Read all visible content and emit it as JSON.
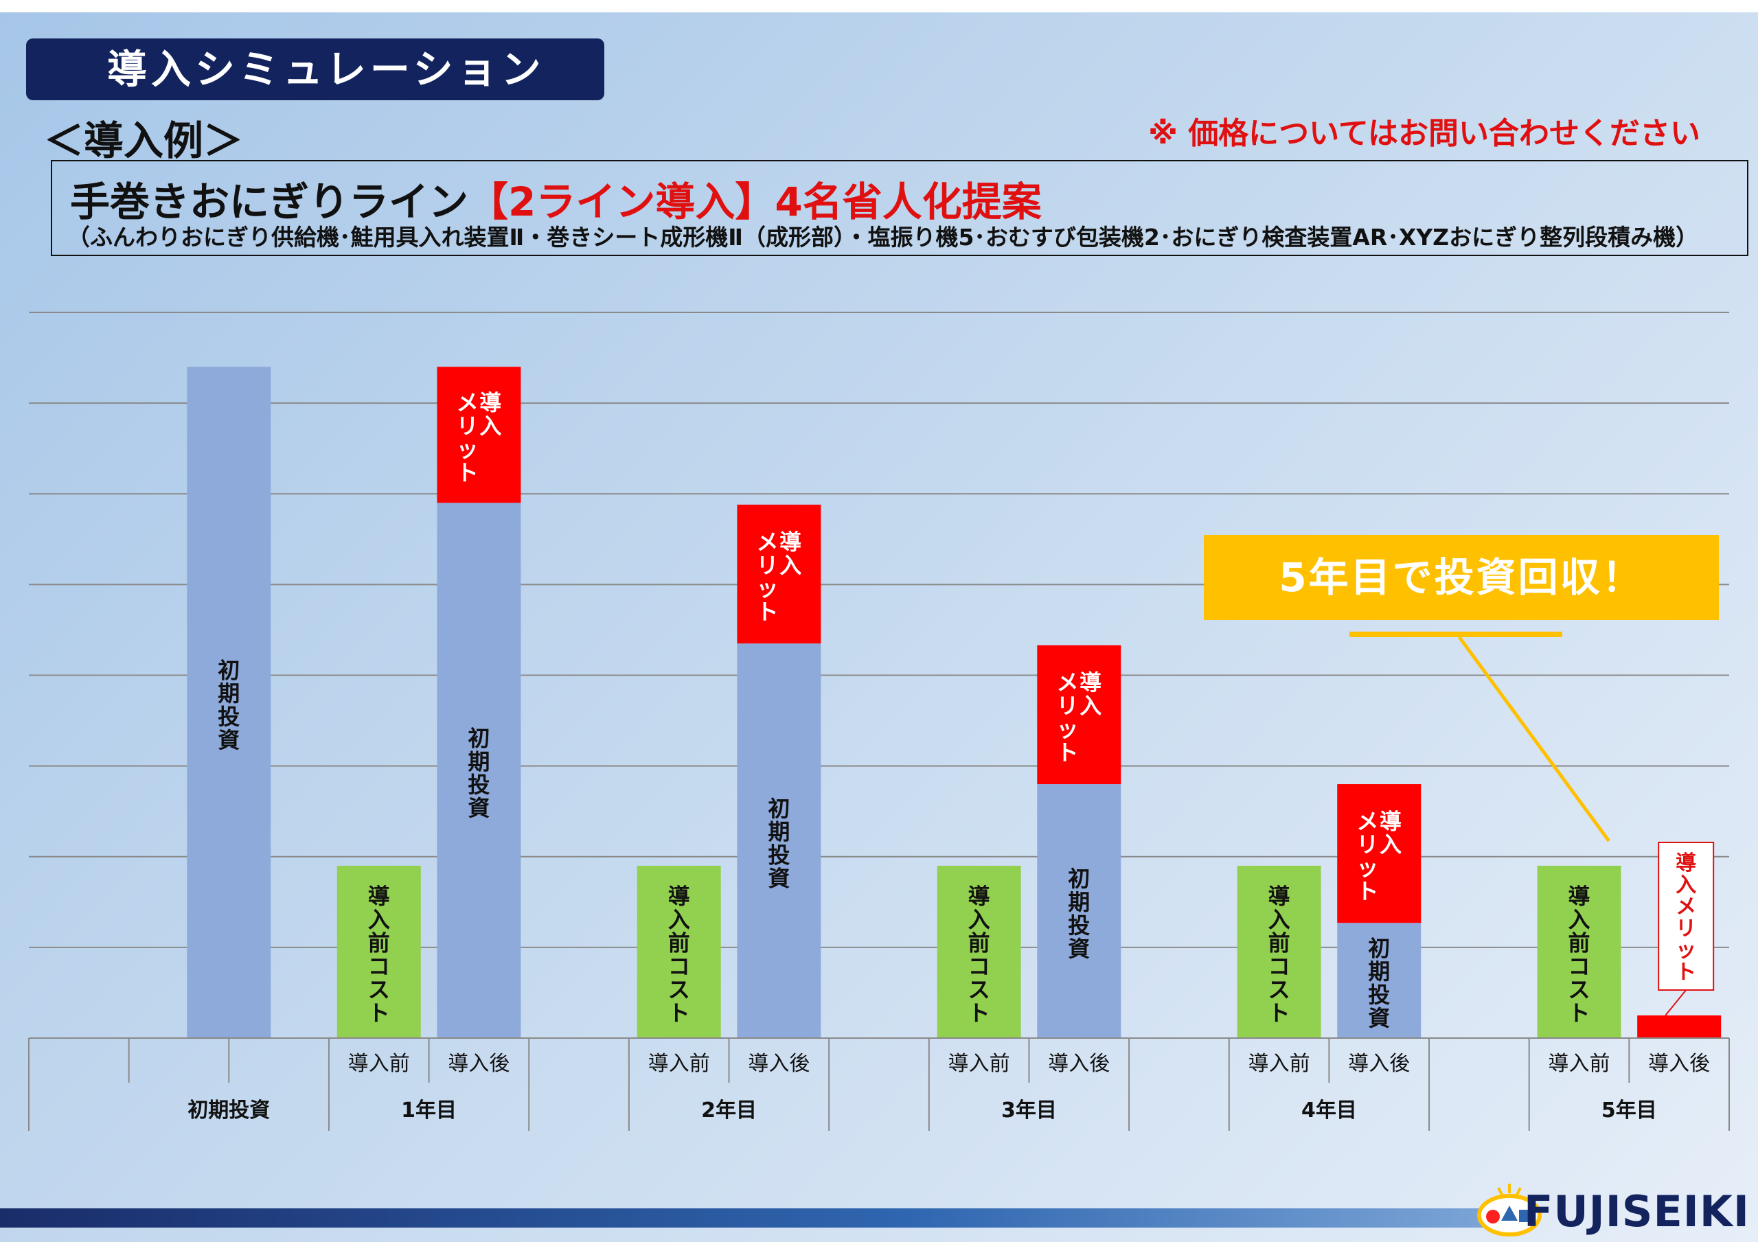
{
  "header": {
    "title": "導入シミュレーション",
    "subtitle": "＜導入例＞",
    "price_note": "※ 価格についてはお問い合わせください"
  },
  "info_box": {
    "title_prefix": "手巻きおにぎりライン",
    "title_highlight": "【2ライン導入】4名省人化提案",
    "models": "（ふんわりおにぎり供給機･鮭用具入れ装置Ⅱ・巻きシート成形機Ⅱ（成形部）・塩振り機5･おむすび包装機2･おにぎり検査装置AR･XYZおにぎり整列段積み機）"
  },
  "callout": {
    "text": "5年目で投資回収！"
  },
  "logo": {
    "text": "FUJISEIKI"
  },
  "colors": {
    "initial_investment": "#8eaadb",
    "pre_cost": "#92d050",
    "merit": "#ff0000",
    "banner": "#13235e",
    "callout": "#ffc000"
  },
  "chart_data": {
    "type": "bar",
    "stacked": true,
    "ylim": [
      0,
      8
    ],
    "gridlines": 8,
    "y_tick_labels": false,
    "groups": [
      "初期投資",
      "1年目",
      "2年目",
      "3年目",
      "4年目",
      "5年目"
    ],
    "subcategory_labels": [
      "導入前",
      "導入後"
    ],
    "bars": [
      {
        "group": "初期投資",
        "sub": "",
        "segments": [
          {
            "series": "初期投資",
            "value": 7.4,
            "label": "初期投資"
          }
        ]
      },
      {
        "group": "1年目",
        "sub": "導入前",
        "segments": [
          {
            "series": "導入前コスト",
            "value": 1.9,
            "label": "導入前コスト"
          }
        ]
      },
      {
        "group": "1年目",
        "sub": "導入後",
        "segments": [
          {
            "series": "初期投資",
            "value": 5.9,
            "label": "初期投資"
          },
          {
            "series": "導入メリット",
            "value": 1.5,
            "label": "導入\nメリット"
          }
        ]
      },
      {
        "group": "2年目",
        "sub": "導入前",
        "segments": [
          {
            "series": "導入前コスト",
            "value": 1.9,
            "label": "導入前コスト"
          }
        ]
      },
      {
        "group": "2年目",
        "sub": "導入後",
        "segments": [
          {
            "series": "初期投資",
            "value": 4.35,
            "label": "初期投資"
          },
          {
            "series": "導入メリット",
            "value": 1.53,
            "label": "導入\nメリット"
          }
        ]
      },
      {
        "group": "3年目",
        "sub": "導入前",
        "segments": [
          {
            "series": "導入前コスト",
            "value": 1.9,
            "label": "導入前コスト"
          }
        ]
      },
      {
        "group": "3年目",
        "sub": "導入後",
        "segments": [
          {
            "series": "初期投資",
            "value": 2.8,
            "label": "初期投資"
          },
          {
            "series": "導入メリット",
            "value": 1.53,
            "label": "導入\nメリット"
          }
        ]
      },
      {
        "group": "4年目",
        "sub": "導入前",
        "segments": [
          {
            "series": "導入前コスト",
            "value": 1.9,
            "label": "導入前コスト"
          }
        ]
      },
      {
        "group": "4年目",
        "sub": "導入後",
        "segments": [
          {
            "series": "初期投資",
            "value": 1.27,
            "label": "初期投資"
          },
          {
            "series": "導入メリット",
            "value": 1.53,
            "label": "導入\nメリット"
          }
        ]
      },
      {
        "group": "5年目",
        "sub": "導入前",
        "segments": [
          {
            "series": "導入前コスト",
            "value": 1.9,
            "label": "導入前コスト"
          }
        ]
      },
      {
        "group": "5年目",
        "sub": "導入後",
        "segments": [
          {
            "series": "導入メリット",
            "value": 0.25,
            "label": "導入メリット",
            "label_callout": true
          }
        ]
      }
    ],
    "legend": "none",
    "title": "",
    "xlabel": "",
    "ylabel": ""
  }
}
